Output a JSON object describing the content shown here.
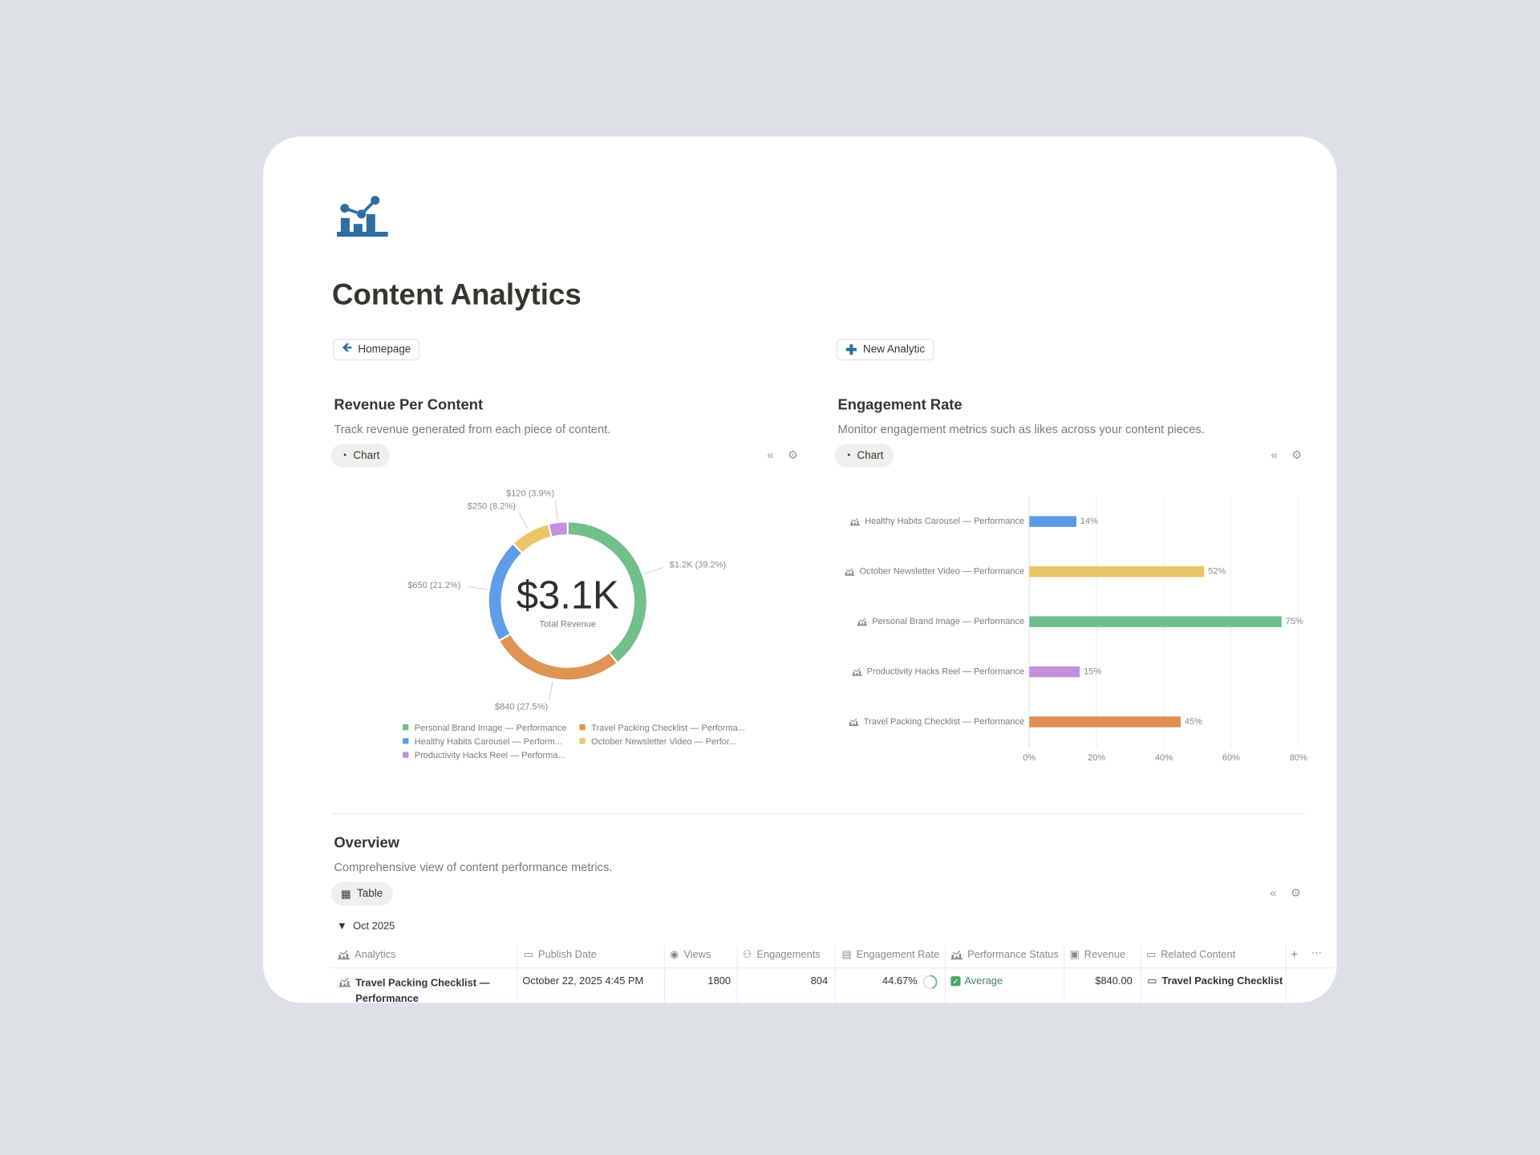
{
  "header": {
    "title": "Content Analytics"
  },
  "buttons": [
    "Homepage",
    "New Analytic"
  ],
  "chart_data": [
    {
      "type": "pie",
      "title": "Revenue Per Content",
      "subtitle": "Track revenue generated from each piece of content.",
      "view": "Chart",
      "center_value": "$3.1K",
      "center_label": "Total Revenue",
      "categories": [
        "Personal Brand Image — Performance",
        "Travel Packing Checklist — Performa...",
        "Healthy Habits Carousel — Perform...",
        "October Newsletter Video — Perfor...",
        "Productivity Hacks Reel — Performa..."
      ],
      "values": [
        1200,
        840,
        650,
        250,
        120
      ],
      "value_labels": [
        "$1.2K (39.2%)",
        "$840 (27.5%)",
        "$650 (21.2%)",
        "$250 (8.2%)",
        "$120 (3.9%)"
      ],
      "colors": [
        "#72bf8b",
        "#df9454",
        "#5f9de8",
        "#ebc568",
        "#c48fdd"
      ],
      "legend": "bottom"
    },
    {
      "type": "bar",
      "orientation": "horizontal",
      "title": "Engagement Rate",
      "subtitle": "Monitor engagement metrics such as likes across your content pieces.",
      "view": "Chart",
      "categories": [
        "Healthy Habits Carousel — Performance",
        "October Newsletter Video — Performance",
        "Personal Brand Image — Performance",
        "Productivity Hacks Reel — Performance",
        "Travel Packing Checklist — Performance"
      ],
      "values": [
        14,
        52,
        75,
        15,
        45
      ],
      "value_labels": [
        "14%",
        "52%",
        "75%",
        "15%",
        "45%"
      ],
      "colors": [
        "#5b9be6",
        "#eac56a",
        "#6fbf8a",
        "#c38fdd",
        "#df8f52"
      ],
      "xlim": [
        0,
        80
      ],
      "xticks": [
        {
          "value": 0,
          "label": "0%"
        },
        {
          "value": 20,
          "label": "20%"
        },
        {
          "value": 40,
          "label": "40%"
        },
        {
          "value": 60,
          "label": "60%"
        },
        {
          "value": 80,
          "label": "80%"
        }
      ],
      "grid": true
    }
  ],
  "overview": {
    "title": "Overview",
    "subtitle": "Comprehensive view of content performance metrics.",
    "view": "Table",
    "group": "Oct 2025",
    "columns": [
      "Analytics",
      "Publish Date",
      "Views",
      "Engagements",
      "Engagement Rate",
      "Performance Status",
      "Revenue",
      "Related Content"
    ],
    "rows": [
      [
        "Travel Packing Checklist — Performance",
        "October 22, 2025 4:45 PM",
        "1800",
        "804",
        "44.67%",
        "Average",
        "$840.00",
        "Travel Packing Checklist"
      ]
    ]
  }
}
